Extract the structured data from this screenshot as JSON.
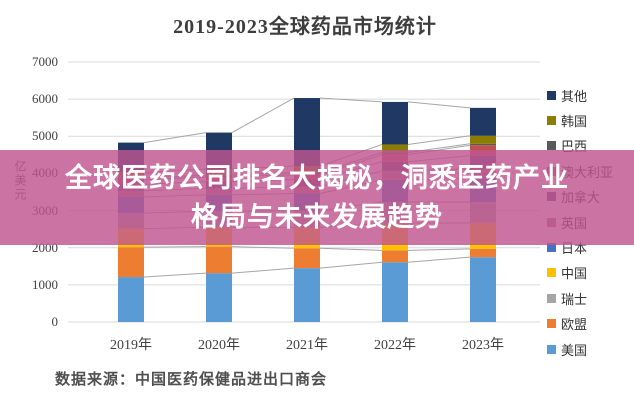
{
  "title": "2019-2023全球药品市场统计",
  "overlay": {
    "line1": "全球医药公司排名大揭秘，洞悉医药产业",
    "line2": "格局与未来发展趋势",
    "bg_color": "#C9719E",
    "text_color": "#FFFFFF"
  },
  "source_note": "数据来源：中国医药保健品进出口商会",
  "chart_data": {
    "type": "bar",
    "stacked": true,
    "title": "2019-2023全球药品市场统计",
    "xlabel": "",
    "ylabel": "亿美元",
    "ylim": [
      0,
      7000
    ],
    "ytick_step": 1000,
    "yticks": [
      "0",
      "1000",
      "2000",
      "3000",
      "4000",
      "5000",
      "6000",
      "7000"
    ],
    "grid": true,
    "series_connector_lines": true,
    "legend_position": "right",
    "categories": [
      "2019年",
      "2020年",
      "2021年",
      "2022年",
      "2023年"
    ],
    "totals": [
      4830,
      5100,
      6030,
      5925,
      5765
    ],
    "series": [
      {
        "name": "美国",
        "color": "#5B9BD5",
        "values": [
          1210,
          1315,
          1450,
          1610,
          1745
        ]
      },
      {
        "name": "欧盟",
        "color": "#ED7D31",
        "values": [
          805,
          715,
          535,
          320,
          225
        ]
      },
      {
        "name": "中国",
        "color": "#FFC000",
        "values": [
          500,
          520,
          560,
          730,
          700
        ]
      },
      {
        "name": "瑞士",
        "color": "#A5A5A5",
        "values": [
          420,
          430,
          450,
          570,
          560
        ]
      },
      {
        "name": "日本",
        "color": "#4472C4",
        "values": [
          430,
          445,
          465,
          600,
          640
        ]
      },
      {
        "name": "英国",
        "color": "#9E8087",
        "values": [
          170,
          175,
          185,
          240,
          260
        ]
      },
      {
        "name": "加拿大",
        "color": "#604A7B",
        "values": [
          175,
          180,
          190,
          245,
          349
        ]
      },
      {
        "name": "澳大利亚",
        "color": "#C0504D",
        "values": [
          120,
          125,
          130,
          190,
          280
        ]
      },
      {
        "name": "巴西",
        "color": "#595959",
        "values": [
          50,
          50,
          55,
          60,
          40
        ]
      },
      {
        "name": "韩国",
        "color": "#8B7D00",
        "values": [
          150,
          160,
          180,
          215,
          214
        ]
      },
      {
        "name": "其他",
        "color": "#1F3864",
        "values": [
          800,
          985,
          1830,
          1145,
          752
        ]
      }
    ],
    "legend_top_to_bottom": [
      "其他",
      "韩国",
      "巴西",
      "澳大利亚",
      "加拿大",
      "英国",
      "日本",
      "中国",
      "瑞士",
      "欧盟",
      "美国"
    ],
    "colors": {
      "grid": "#D9D9D9",
      "connector_line": "#A6A6A6",
      "axis_text": "#404040"
    }
  }
}
